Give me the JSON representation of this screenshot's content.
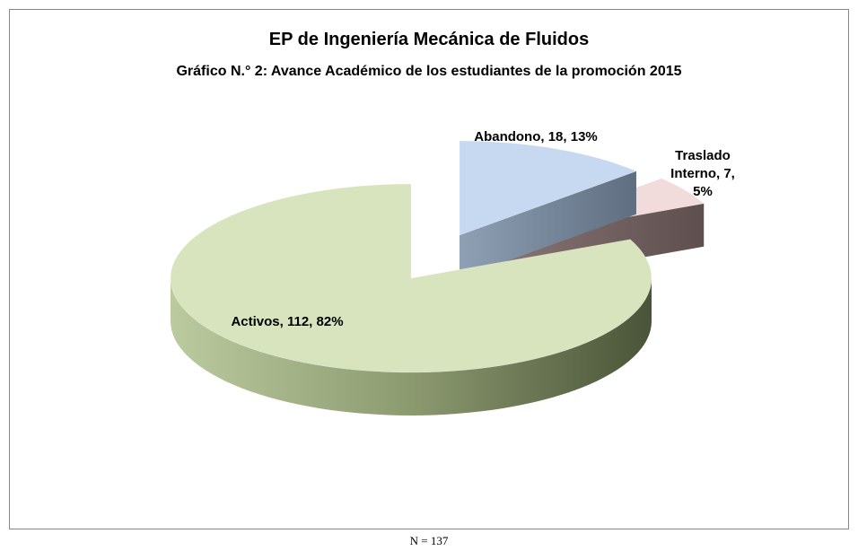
{
  "chart_data": {
    "type": "pie",
    "title": "EP de Ingeniería Mecánica de Fluidos",
    "subtitle": "Gráfico N.° 2: Avance Académico de los estudiantes de la promoción 2015",
    "categories": [
      "Abandono",
      "Traslado Interno",
      "Activos"
    ],
    "values": [
      18,
      7,
      112
    ],
    "value_labels": [
      "Abandono, 18, 13%",
      "Traslado Interno, 7, 5%",
      "Activos, 112, 82%"
    ],
    "colors": [
      "#c6d9f1",
      "#f2dcdb",
      "#d7e4bd"
    ],
    "note": "N = 137"
  }
}
